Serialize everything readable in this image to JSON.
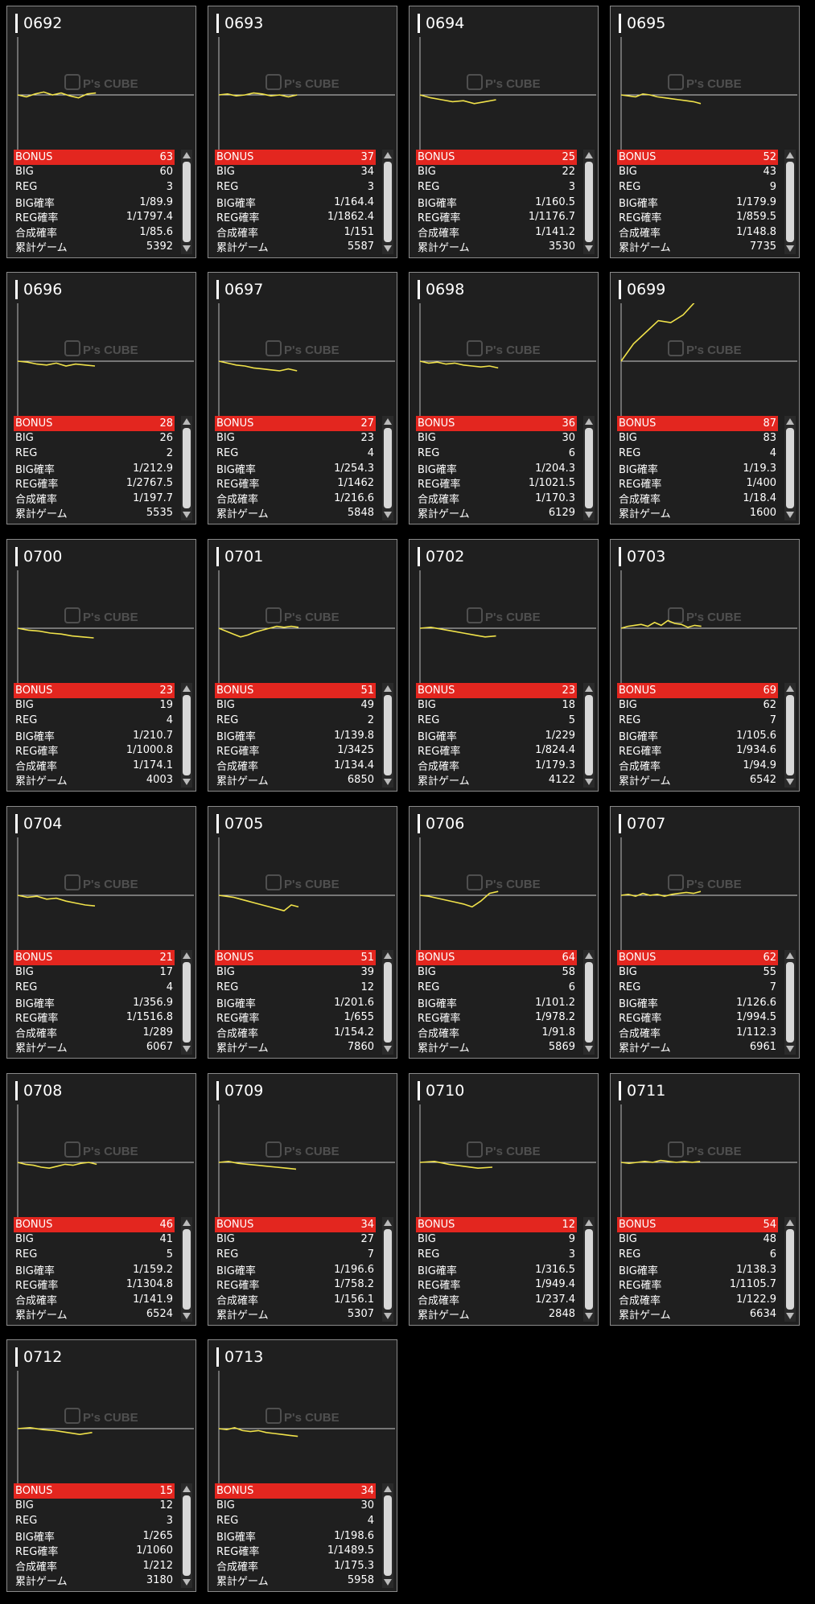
{
  "machines": [
    {
      "id": "0692",
      "bonus": "63",
      "big": "60",
      "reg": "3",
      "big_rate": "1/89.9",
      "reg_rate": "1/1797.4",
      "combined_rate": "1/85.6",
      "total_games": "5392",
      "trend": [
        0,
        -2,
        1,
        3,
        0,
        2,
        -1,
        -3,
        1,
        2
      ]
    },
    {
      "id": "0693",
      "bonus": "37",
      "big": "34",
      "reg": "3",
      "big_rate": "1/164.4",
      "reg_rate": "1/1862.4",
      "combined_rate": "1/151",
      "total_games": "5587",
      "trend": [
        0,
        1,
        -1,
        0,
        2,
        1,
        -1,
        0,
        -2,
        0
      ]
    },
    {
      "id": "0694",
      "bonus": "25",
      "big": "22",
      "reg": "3",
      "big_rate": "1/160.5",
      "reg_rate": "1/1176.7",
      "combined_rate": "1/141.2",
      "total_games": "3530",
      "trend": [
        0,
        -3,
        -5,
        -7,
        -6,
        -9,
        -7,
        -5
      ]
    },
    {
      "id": "0695",
      "bonus": "52",
      "big": "43",
      "reg": "9",
      "big_rate": "1/179.9",
      "reg_rate": "1/859.5",
      "combined_rate": "1/148.8",
      "total_games": "7735",
      "trend": [
        0,
        -1,
        -2,
        1,
        0,
        -2,
        -3,
        -4,
        -5,
        -6,
        -7,
        -9
      ]
    },
    {
      "id": "0696",
      "bonus": "28",
      "big": "26",
      "reg": "2",
      "big_rate": "1/212.9",
      "reg_rate": "1/2767.5",
      "combined_rate": "1/197.7",
      "total_games": "5535",
      "trend": [
        0,
        -1,
        -3,
        -4,
        -2,
        -5,
        -3,
        -4,
        -5
      ]
    },
    {
      "id": "0697",
      "bonus": "27",
      "big": "23",
      "reg": "4",
      "big_rate": "1/254.3",
      "reg_rate": "1/1462",
      "combined_rate": "1/216.6",
      "total_games": "5848",
      "trend": [
        0,
        -2,
        -4,
        -5,
        -7,
        -8,
        -9,
        -10,
        -8,
        -10
      ]
    },
    {
      "id": "0698",
      "bonus": "36",
      "big": "30",
      "reg": "6",
      "big_rate": "1/204.3",
      "reg_rate": "1/1021.5",
      "combined_rate": "1/170.3",
      "total_games": "6129",
      "trend": [
        0,
        -2,
        -1,
        -3,
        -2,
        -4,
        -5,
        -6,
        -5,
        -7
      ]
    },
    {
      "id": "0699",
      "bonus": "87",
      "big": "83",
      "reg": "4",
      "big_rate": "1/19.3",
      "reg_rate": "1/400",
      "combined_rate": "1/18.4",
      "total_games": "1600",
      "trend": [
        0,
        18,
        30,
        42,
        40,
        48,
        62
      ]
    },
    {
      "id": "0700",
      "bonus": "23",
      "big": "19",
      "reg": "4",
      "big_rate": "1/210.7",
      "reg_rate": "1/1000.8",
      "combined_rate": "1/174.1",
      "total_games": "4003",
      "trend": [
        0,
        -2,
        -3,
        -5,
        -6,
        -8,
        -9,
        -10
      ]
    },
    {
      "id": "0701",
      "bonus": "51",
      "big": "49",
      "reg": "2",
      "big_rate": "1/139.8",
      "reg_rate": "1/3425",
      "combined_rate": "1/134.4",
      "total_games": "6850",
      "trend": [
        0,
        -3,
        -6,
        -9,
        -7,
        -4,
        -2,
        0,
        2,
        1,
        2,
        1
      ]
    },
    {
      "id": "0702",
      "bonus": "23",
      "big": "18",
      "reg": "5",
      "big_rate": "1/229",
      "reg_rate": "1/824.4",
      "combined_rate": "1/179.3",
      "total_games": "4122",
      "trend": [
        0,
        1,
        -1,
        -3,
        -5,
        -7,
        -9,
        -8
      ]
    },
    {
      "id": "0703",
      "bonus": "69",
      "big": "62",
      "reg": "7",
      "big_rate": "1/105.6",
      "reg_rate": "1/934.6",
      "combined_rate": "1/94.9",
      "total_games": "6542",
      "trend": [
        0,
        2,
        3,
        4,
        2,
        6,
        3,
        8,
        5,
        4,
        1,
        3,
        2
      ]
    },
    {
      "id": "0704",
      "bonus": "21",
      "big": "17",
      "reg": "4",
      "big_rate": "1/356.9",
      "reg_rate": "1/1516.8",
      "combined_rate": "1/289",
      "total_games": "6067",
      "trend": [
        0,
        -2,
        -1,
        -4,
        -3,
        -6,
        -8,
        -10,
        -11
      ]
    },
    {
      "id": "0705",
      "bonus": "51",
      "big": "39",
      "reg": "12",
      "big_rate": "1/201.6",
      "reg_rate": "1/655",
      "combined_rate": "1/154.2",
      "total_games": "7860",
      "trend": [
        0,
        -1,
        -2,
        -4,
        -6,
        -8,
        -10,
        -12,
        -14,
        -16,
        -10,
        -12
      ]
    },
    {
      "id": "0706",
      "bonus": "64",
      "big": "58",
      "reg": "6",
      "big_rate": "1/101.2",
      "reg_rate": "1/978.2",
      "combined_rate": "1/91.8",
      "total_games": "5869",
      "trend": [
        0,
        -1,
        -3,
        -5,
        -7,
        -9,
        -12,
        -6,
        2,
        4
      ]
    },
    {
      "id": "0707",
      "bonus": "62",
      "big": "55",
      "reg": "7",
      "big_rate": "1/126.6",
      "reg_rate": "1/994.5",
      "combined_rate": "1/112.3",
      "total_games": "6961",
      "trend": [
        0,
        1,
        -1,
        2,
        0,
        1,
        -1,
        1,
        2,
        3,
        2,
        4
      ]
    },
    {
      "id": "0708",
      "bonus": "46",
      "big": "41",
      "reg": "5",
      "big_rate": "1/159.2",
      "reg_rate": "1/1304.8",
      "combined_rate": "1/141.9",
      "total_games": "6524",
      "trend": [
        0,
        -2,
        -3,
        -5,
        -6,
        -4,
        -2,
        -3,
        -1,
        0,
        -2
      ]
    },
    {
      "id": "0709",
      "bonus": "34",
      "big": "27",
      "reg": "7",
      "big_rate": "1/196.6",
      "reg_rate": "1/758.2",
      "combined_rate": "1/156.1",
      "total_games": "5307",
      "trend": [
        0,
        1,
        -1,
        -2,
        -3,
        -4,
        -5,
        -6,
        -7
      ]
    },
    {
      "id": "0710",
      "bonus": "12",
      "big": "9",
      "reg": "3",
      "big_rate": "1/316.5",
      "reg_rate": "1/949.4",
      "combined_rate": "1/237.4",
      "total_games": "2848",
      "trend": [
        0,
        1,
        -2,
        -4,
        -6,
        -5
      ]
    },
    {
      "id": "0711",
      "bonus": "54",
      "big": "48",
      "reg": "6",
      "big_rate": "1/138.3",
      "reg_rate": "1/1105.7",
      "combined_rate": "1/122.9",
      "total_games": "6634",
      "trend": [
        0,
        -1,
        0,
        1,
        0,
        2,
        1,
        0,
        1,
        0,
        1
      ]
    },
    {
      "id": "0712",
      "bonus": "15",
      "big": "12",
      "reg": "3",
      "big_rate": "1/265",
      "reg_rate": "1/1060",
      "combined_rate": "1/212",
      "total_games": "3180",
      "trend": [
        0,
        1,
        -1,
        -2,
        -4,
        -6,
        -4
      ]
    },
    {
      "id": "0713",
      "bonus": "34",
      "big": "30",
      "reg": "4",
      "big_rate": "1/198.6",
      "reg_rate": "1/1489.5",
      "combined_rate": "1/175.3",
      "total_games": "5958",
      "trend": [
        0,
        -1,
        1,
        -2,
        -3,
        -2,
        -4,
        -5,
        -6,
        -7,
        -8
      ]
    }
  ],
  "labels": {
    "bonus": "BONUS",
    "big": "BIG",
    "reg": "REG",
    "big_rate": "BIG確率",
    "reg_rate": "REG確率",
    "combined_rate": "合成確率",
    "total_games": "累計ゲーム"
  },
  "colors": {
    "bonus_bar": "#e3261f",
    "trend_line": "#f0e24a",
    "baseline": "#cccccc"
  },
  "watermark": "P's CUBE"
}
